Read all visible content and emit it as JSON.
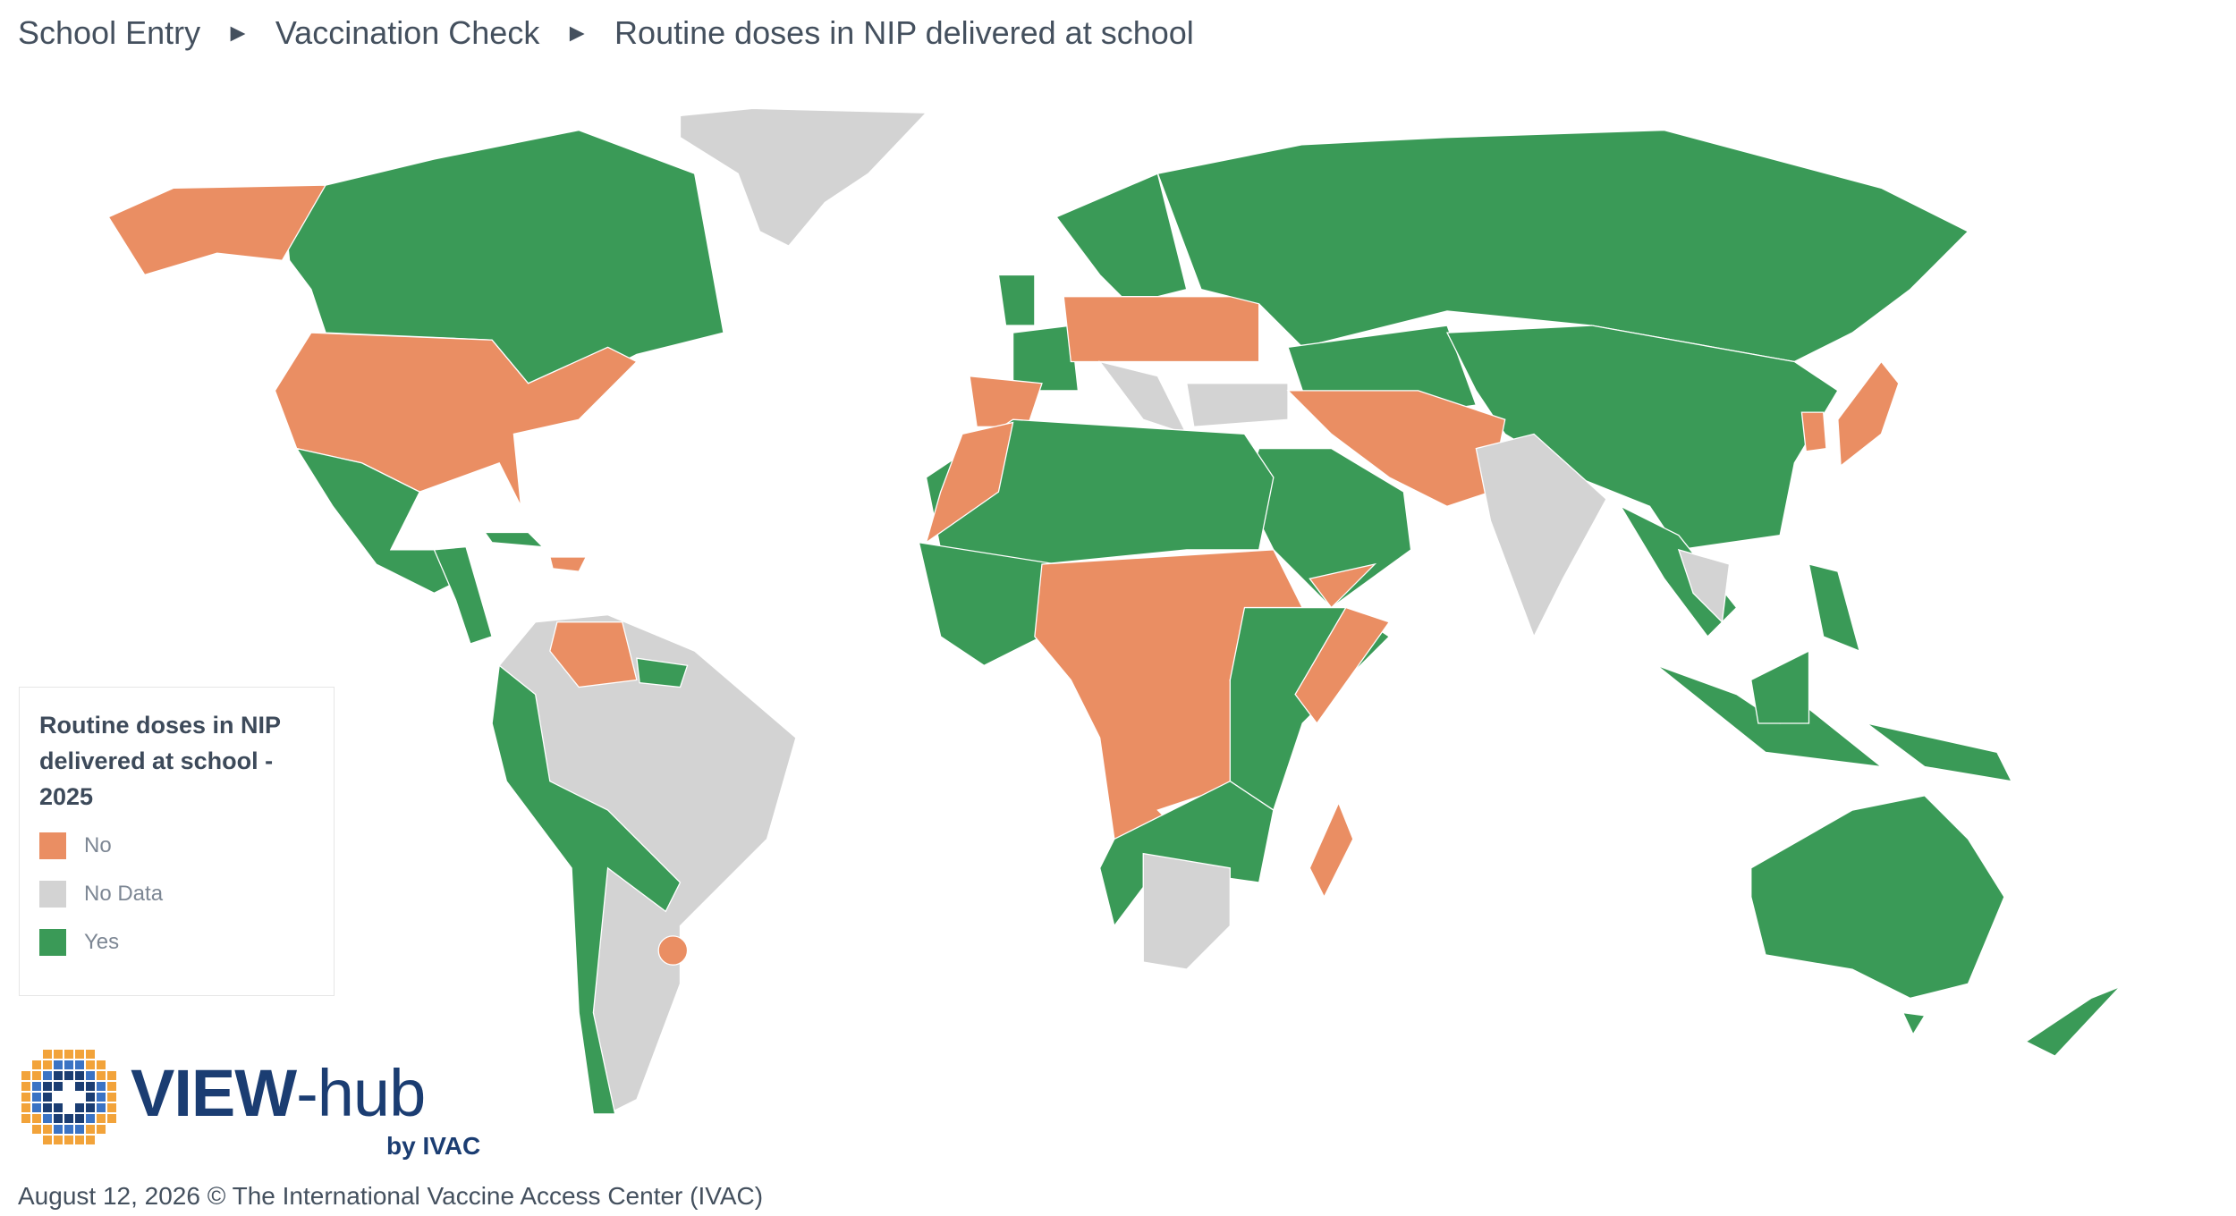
{
  "breadcrumb": {
    "items": [
      "School Entry",
      "Vaccination Check",
      "Routine doses in NIP delivered at school"
    ],
    "separator": "►"
  },
  "legend": {
    "title": "Routine doses in NIP delivered at school - 2025",
    "items": [
      {
        "label": "No",
        "color": "#ea8e63"
      },
      {
        "label": "No Data",
        "color": "#d3d3d3"
      },
      {
        "label": "Yes",
        "color": "#3a9a57"
      }
    ]
  },
  "logo": {
    "name": "VIEW",
    "suffix": "-hub",
    "tagline": "by IVAC"
  },
  "footer": "August 12, 2026 © The International Vaccine Access Center (IVAC)"
}
